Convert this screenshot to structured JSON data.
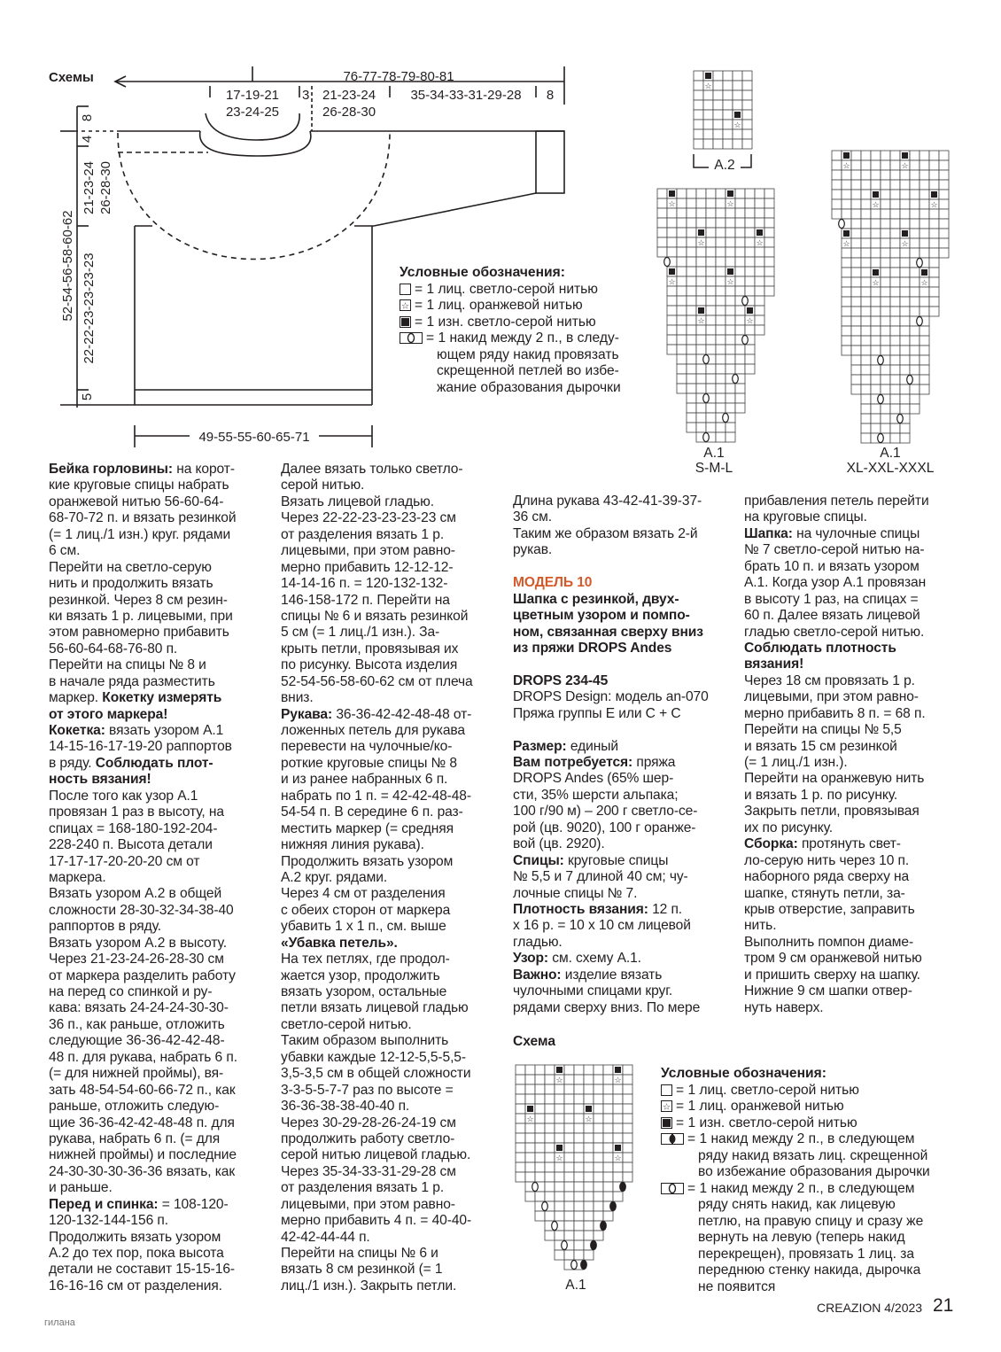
{
  "schematic": {
    "title": "Схемы",
    "width_total": "76-77-78-79-80-81",
    "neck_width_1": "17-19-21",
    "neck_width_2": "23-24-25",
    "shoulder_gap": "3",
    "shoulder_1": "21-23-24",
    "shoulder_2": "26-28-30",
    "sleeve_length": "35-34-33-31-29-28",
    "cuff": "8",
    "neck_rib": "8",
    "yoke_top": "4",
    "yoke_1": "21-23-24",
    "yoke_2": "26-28-30",
    "total_length": "52-54-56-58-60-62",
    "body_length": "22-22-23-23-23-23",
    "hem": "5",
    "bottom_width": "49-55-55-60-65-71"
  },
  "legend_sweater": {
    "title": "Условные обозначения:",
    "items": [
      {
        "symbol": "empty-square",
        "lines": [
          "= 1 лиц. светло-серой нитью"
        ]
      },
      {
        "symbol": "star-square",
        "lines": [
          "= 1 лиц. оранжевой нитью"
        ]
      },
      {
        "symbol": "filled-square",
        "lines": [
          "= 1 изн. светло-серой нитью"
        ]
      },
      {
        "symbol": "yarn-over-white",
        "lines": [
          "= 1 накид между 2 п., в следу-",
          "ющем ряду накид провязать",
          "скрещенной петлей во избе-",
          "жание образования дырочки"
        ]
      }
    ]
  },
  "charts": {
    "a2_label": "A.2",
    "a1_sml_label": "A.1",
    "a1_sml_sizes": "S-M-L",
    "a1_xl_label": "A.1",
    "a1_xl_sizes": "XL-XXL-XXXL",
    "hat_title": "Схема",
    "hat_label": "A.1"
  },
  "columns": [
    {
      "lines": [
        [
          [
            "Бейка горловины:",
            "b"
          ],
          [
            " на корот-",
            ""
          ]
        ],
        [
          [
            "кие круговые спицы набрать",
            ""
          ]
        ],
        [
          [
            "оранжевой нитью 56-60-64-",
            ""
          ]
        ],
        [
          [
            "68-70-72 п. и вязать резинкой",
            ""
          ]
        ],
        [
          [
            "(= 1 лиц./1 изн.) круг. рядами",
            ""
          ]
        ],
        [
          [
            "6 см.",
            ""
          ]
        ],
        [
          [
            "Перейти на светло-серую",
            ""
          ]
        ],
        [
          [
            "нить и продолжить вязать",
            ""
          ]
        ],
        [
          [
            "резинкой. Через 8 см резин-",
            ""
          ]
        ],
        [
          [
            "ки вязать 1 р. лицевыми, при",
            ""
          ]
        ],
        [
          [
            "этом равномерно прибавить",
            ""
          ]
        ],
        [
          [
            "56-60-64-68-76-80 п.",
            ""
          ]
        ],
        [
          [
            "Перейти на спицы № 8 и",
            ""
          ]
        ],
        [
          [
            "в начале ряда разместить",
            ""
          ]
        ],
        [
          [
            "маркер. ",
            ""
          ],
          [
            "Кокетку измерять",
            "b"
          ]
        ],
        [
          [
            "от этого маркера!",
            "b"
          ]
        ],
        [
          [
            "Кокетка:",
            "b"
          ],
          [
            " вязать узором А.1",
            ""
          ]
        ],
        [
          [
            "14-15-16-17-19-20 раппортов",
            ""
          ]
        ],
        [
          [
            "в ряду. ",
            ""
          ],
          [
            "Соблюдать плот-",
            "b"
          ]
        ],
        [
          [
            "ность вязания!",
            "b"
          ]
        ],
        [
          [
            "После того как узор А.1",
            ""
          ]
        ],
        [
          [
            "провязан 1 раз в высоту, на",
            ""
          ]
        ],
        [
          [
            "спицах = 168-180-192-204-",
            ""
          ]
        ],
        [
          [
            "228-240 п. Высота детали",
            ""
          ]
        ],
        [
          [
            "17-17-17-20-20-20 см от",
            ""
          ]
        ],
        [
          [
            "маркера.",
            ""
          ]
        ],
        [
          [
            "Вязать узором А.2 в общей",
            ""
          ]
        ],
        [
          [
            "сложности 28-30-32-34-38-40",
            ""
          ]
        ],
        [
          [
            "раппортов в ряду.",
            ""
          ]
        ],
        [
          [
            "Вязать узором А.2 в высоту.",
            ""
          ]
        ],
        [
          [
            "Через 21-23-24-26-28-30 см",
            ""
          ]
        ],
        [
          [
            "от маркера разделить работу",
            ""
          ]
        ],
        [
          [
            "на перед со спинкой и ру-",
            ""
          ]
        ],
        [
          [
            "кава: вязать 24-24-24-30-30-",
            ""
          ]
        ],
        [
          [
            "36 п., как раньше, отложить",
            ""
          ]
        ],
        [
          [
            "следующие 36-36-42-42-48-",
            ""
          ]
        ],
        [
          [
            "48 п. для рукава, набрать 6 п.",
            ""
          ]
        ],
        [
          [
            "(= для нижней проймы), вя-",
            ""
          ]
        ],
        [
          [
            "зать 48-54-54-60-66-72 п., как",
            ""
          ]
        ],
        [
          [
            "раньше, отложить следую-",
            ""
          ]
        ],
        [
          [
            "щие 36-36-42-42-48-48 п. для",
            ""
          ]
        ],
        [
          [
            "рукава, набрать 6 п. (= для",
            ""
          ]
        ],
        [
          [
            "нижней проймы) и последние",
            ""
          ]
        ],
        [
          [
            "24-30-30-30-36-36 вязать, как",
            ""
          ]
        ],
        [
          [
            "и раньше.",
            ""
          ]
        ],
        [
          [
            "Перед и спинка:",
            "b"
          ],
          [
            " = 108-120-",
            ""
          ]
        ],
        [
          [
            "120-132-144-156 п.",
            ""
          ]
        ],
        [
          [
            "Продолжить вязать узором",
            ""
          ]
        ],
        [
          [
            "А.2 до тех пор, пока высота",
            ""
          ]
        ],
        [
          [
            "детали не составит 15-15-16-",
            ""
          ]
        ],
        [
          [
            "16-16-16 см от разделения.",
            ""
          ]
        ]
      ]
    },
    {
      "lines": [
        [
          [
            "Далее вязать только светло-",
            ""
          ]
        ],
        [
          [
            "серой нитью.",
            ""
          ]
        ],
        [
          [
            "Вязать лицевой гладью.",
            ""
          ]
        ],
        [
          [
            "Через 22-22-23-23-23-23 см",
            ""
          ]
        ],
        [
          [
            "от разделения вязать 1 р.",
            ""
          ]
        ],
        [
          [
            "лицевыми, при этом равно-",
            ""
          ]
        ],
        [
          [
            "мерно прибавить 12-12-12-",
            ""
          ]
        ],
        [
          [
            "14-14-16 п. = 120-132-132-",
            ""
          ]
        ],
        [
          [
            "146-158-172 п. Перейти на",
            ""
          ]
        ],
        [
          [
            "спицы № 6 и вязать резинкой",
            ""
          ]
        ],
        [
          [
            "5 см (= 1 лиц./1 изн.). За-",
            ""
          ]
        ],
        [
          [
            "крыть петли, провязывая их",
            ""
          ]
        ],
        [
          [
            "по рисунку. Высота изделия",
            ""
          ]
        ],
        [
          [
            "52-54-56-58-60-62 см от плеча",
            ""
          ]
        ],
        [
          [
            "вниз.",
            ""
          ]
        ],
        [
          [
            "Рукава:",
            "b"
          ],
          [
            " 36-36-42-42-48-48 от-",
            ""
          ]
        ],
        [
          [
            "ложенных петель для рукава",
            ""
          ]
        ],
        [
          [
            "перевести на чулочные/ко-",
            ""
          ]
        ],
        [
          [
            "роткие круговые спицы № 8",
            ""
          ]
        ],
        [
          [
            "и из ранее набранных 6 п.",
            ""
          ]
        ],
        [
          [
            "набрать по 1 п. = 42-42-48-48-",
            ""
          ]
        ],
        [
          [
            "54-54 п. В середине 6 п. раз-",
            ""
          ]
        ],
        [
          [
            "местить маркер (= средняя",
            ""
          ]
        ],
        [
          [
            "нижняя линия рукава).",
            ""
          ]
        ],
        [
          [
            "Продолжить вязать узором",
            ""
          ]
        ],
        [
          [
            "А.2 круг. рядами.",
            ""
          ]
        ],
        [
          [
            "Через 4 см от разделения",
            ""
          ]
        ],
        [
          [
            "с обеих сторон от маркера",
            ""
          ]
        ],
        [
          [
            "убавить 1 х 1 п., см. выше",
            ""
          ]
        ],
        [
          [
            "«Убавка петель».",
            "b"
          ]
        ],
        [
          [
            "На тех петлях, где продол-",
            ""
          ]
        ],
        [
          [
            "жается узор, продолжить",
            ""
          ]
        ],
        [
          [
            "вязать узором, остальные",
            ""
          ]
        ],
        [
          [
            "петли вязать лицевой гладью",
            ""
          ]
        ],
        [
          [
            "светло-серой нитью.",
            ""
          ]
        ],
        [
          [
            "Таким образом выполнить",
            ""
          ]
        ],
        [
          [
            "убавки каждые 12-12-5,5-5,5-",
            ""
          ]
        ],
        [
          [
            "3,5-3,5 см в общей сложности",
            ""
          ]
        ],
        [
          [
            "3-3-5-5-7-7 раз по высоте =",
            ""
          ]
        ],
        [
          [
            "36-36-38-38-40-40 п.",
            ""
          ]
        ],
        [
          [
            "Через 30-29-28-26-24-19 см",
            ""
          ]
        ],
        [
          [
            "продолжить работу светло-",
            ""
          ]
        ],
        [
          [
            "серой нитью лицевой гладью.",
            ""
          ]
        ],
        [
          [
            "Через 35-34-33-31-29-28 см",
            ""
          ]
        ],
        [
          [
            "от разделения вязать 1 р.",
            ""
          ]
        ],
        [
          [
            "лицевыми, при этом равно-",
            ""
          ]
        ],
        [
          [
            "мерно прибавить 4 п. = 40-40-",
            ""
          ]
        ],
        [
          [
            "42-42-44-44 п.",
            ""
          ]
        ],
        [
          [
            "Перейти на спицы № 6 и",
            ""
          ]
        ],
        [
          [
            "вязать 8 см резинкой (= 1",
            ""
          ]
        ],
        [
          [
            "лиц./1 изн.). Закрыть петли.",
            ""
          ]
        ]
      ]
    },
    {
      "lines": [
        [
          [
            "Длина рукава 43-42-41-39-37-",
            ""
          ]
        ],
        [
          [
            "36 см.",
            ""
          ]
        ],
        [
          [
            "Таким же образом вязать 2-й",
            ""
          ]
        ],
        [
          [
            "рукав.",
            ""
          ]
        ],
        [],
        [
          [
            "МОДЕЛЬ 10",
            "h"
          ]
        ],
        [
          [
            "Шапка с резинкой, двух-",
            "b"
          ]
        ],
        [
          [
            "цветным узором и помпо-",
            "b"
          ]
        ],
        [
          [
            "ном, связанная сверху вниз",
            "b"
          ]
        ],
        [
          [
            "из пряжи DROPS Andes",
            "b"
          ]
        ],
        [],
        [
          [
            "DROPS 234-45",
            "b"
          ]
        ],
        [
          [
            "DROPS Design: модель an-070",
            ""
          ]
        ],
        [
          [
            "Пряжа группы E или C + C",
            ""
          ]
        ],
        [],
        [
          [
            "Размер:",
            "b"
          ],
          [
            " единый",
            ""
          ]
        ],
        [
          [
            "Вам потребуется:",
            "b"
          ],
          [
            " пряжа",
            ""
          ]
        ],
        [
          [
            "DROPS Andes (65% шер-",
            ""
          ]
        ],
        [
          [
            "сти, 35% шерсти альпака;",
            ""
          ]
        ],
        [
          [
            "100 г/90 м) – 200 г светло-се-",
            ""
          ]
        ],
        [
          [
            "рой (цв. 9020), 100 г оранже-",
            ""
          ]
        ],
        [
          [
            "вой (цв. 2920).",
            ""
          ]
        ],
        [
          [
            "Спицы:",
            "b"
          ],
          [
            " круговые спицы",
            ""
          ]
        ],
        [
          [
            "№ 5,5 и 7 длиной 40 см; чу-",
            ""
          ]
        ],
        [
          [
            "лочные спицы № 7.",
            ""
          ]
        ],
        [
          [
            "Плотность вязания:",
            "b"
          ],
          [
            " 12 п.",
            ""
          ]
        ],
        [
          [
            "х 16 р. = 10 х 10 см лицевой",
            ""
          ]
        ],
        [
          [
            "гладью.",
            ""
          ]
        ],
        [
          [
            "Узор:",
            "b"
          ],
          [
            " см. схему А.1.",
            ""
          ]
        ],
        [
          [
            "Важно:",
            "b"
          ],
          [
            " изделие вязать",
            ""
          ]
        ],
        [
          [
            "чулочными спицами круг.",
            ""
          ]
        ],
        [
          [
            "рядами сверху вниз. По мере",
            ""
          ]
        ]
      ]
    },
    {
      "lines": [
        [
          [
            "прибавления петель перейти",
            ""
          ]
        ],
        [
          [
            "на круговые спицы.",
            ""
          ]
        ],
        [
          [
            "Шапка:",
            "b"
          ],
          [
            " на чулочные спицы",
            ""
          ]
        ],
        [
          [
            "№ 7 светло-серой нитью на-",
            ""
          ]
        ],
        [
          [
            "брать 10 п. и вязать узором",
            ""
          ]
        ],
        [
          [
            "А.1. Когда узор А.1 провязан",
            ""
          ]
        ],
        [
          [
            "в высоту 1 раз, на спицах =",
            ""
          ]
        ],
        [
          [
            "60 п. Далее вязать лицевой",
            ""
          ]
        ],
        [
          [
            "гладью светло-серой нитью.",
            ""
          ]
        ],
        [
          [
            "Соблюдать плотность",
            "b"
          ]
        ],
        [
          [
            "вязания!",
            "b"
          ]
        ],
        [
          [
            "Через 18 см провязать 1 р.",
            ""
          ]
        ],
        [
          [
            "лицевыми, при этом равно-",
            ""
          ]
        ],
        [
          [
            "мерно прибавить 8 п. = 68 п.",
            ""
          ]
        ],
        [
          [
            "Перейти на спицы № 5,5",
            ""
          ]
        ],
        [
          [
            "и вязать 15 см резинкой",
            ""
          ]
        ],
        [
          [
            "(= 1 лиц./1 изн.).",
            ""
          ]
        ],
        [
          [
            "Перейти на оранжевую нить",
            ""
          ]
        ],
        [
          [
            "и вязать 1 р. по рисунку.",
            ""
          ]
        ],
        [
          [
            "Закрыть петли, провязывая",
            ""
          ]
        ],
        [
          [
            "их по рисунку.",
            ""
          ]
        ],
        [
          [
            "Сборка:",
            "b"
          ],
          [
            " протянуть свет-",
            ""
          ]
        ],
        [
          [
            "ло-серую нить через 10 п.",
            ""
          ]
        ],
        [
          [
            "наборного ряда сверху на",
            ""
          ]
        ],
        [
          [
            "шапке, стянуть петли, за-",
            ""
          ]
        ],
        [
          [
            "крыв отверстие, заправить",
            ""
          ]
        ],
        [
          [
            "нить.",
            ""
          ]
        ],
        [
          [
            "Выполнить помпон диаме-",
            ""
          ]
        ],
        [
          [
            "тром 9 см оранжевой нитью",
            ""
          ]
        ],
        [
          [
            "и пришить сверху на шапку.",
            ""
          ]
        ],
        [
          [
            "Нижние 9 см шапки отвер-",
            ""
          ]
        ],
        [
          [
            "нуть наверх.",
            ""
          ]
        ]
      ]
    }
  ],
  "legend_hat": {
    "title": "Условные обозначения:",
    "items": [
      {
        "symbol": "empty-square",
        "lines": [
          "= 1 лиц. светло-серой нитью"
        ]
      },
      {
        "symbol": "star-square",
        "lines": [
          "= 1 лиц. оранжевой нитью"
        ]
      },
      {
        "symbol": "filled-square",
        "lines": [
          "= 1 изн. светло-серой нитью"
        ]
      },
      {
        "symbol": "yarn-over-black",
        "lines": [
          "= 1 накид между 2 п., в следующем",
          "ряду накид вязать лиц. скрещенной",
          "во избежание образования дырочки"
        ]
      },
      {
        "symbol": "yarn-over-white",
        "lines": [
          "= 1 накид между 2 п., в следующем",
          "ряду снять накид, как лицевую",
          "петлю, на правую спицу и сразу же",
          "вернуть на левую (теперь накид",
          "перекрещен), провязать 1 лиц. за",
          "переднюю стенку накида, дырочка",
          "не появится"
        ]
      }
    ]
  },
  "footer": {
    "magazine": "CREAZION 4/2023",
    "page_number": "21",
    "watermark": "гилана"
  },
  "colors": {
    "text": "#231f20",
    "heading_accent": "#d4592b"
  }
}
